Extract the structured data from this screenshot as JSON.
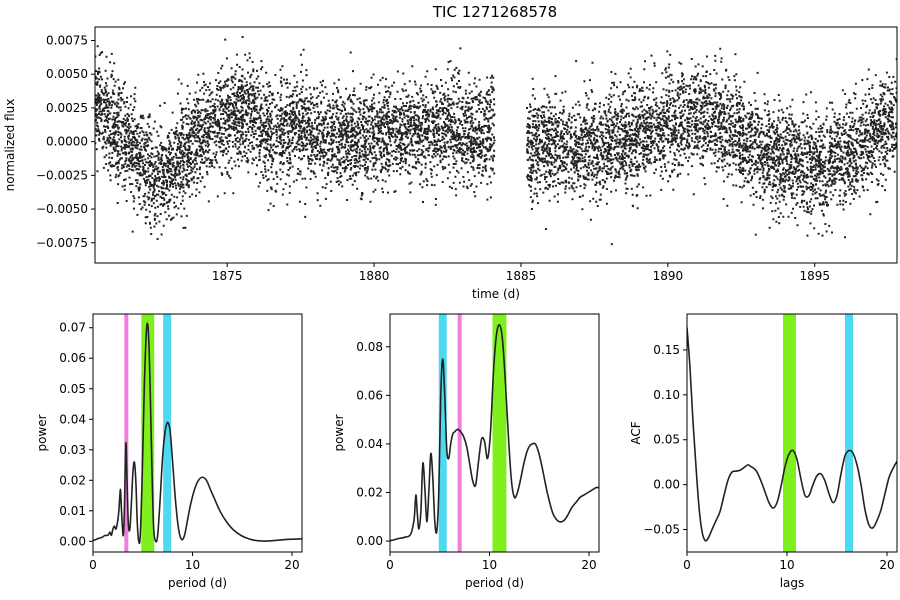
{
  "figure_title": "TIC 1271268578",
  "chart_data": [
    {
      "id": "lightcurve",
      "type": "scatter",
      "title": "TIC 1271268578",
      "xlabel": "time (d)",
      "ylabel": "normalized flux",
      "xlim": [
        1870.5,
        1897.8
      ],
      "ylim": [
        -0.009,
        0.0085
      ],
      "xticks": [
        1875,
        1880,
        1885,
        1890,
        1895
      ],
      "xtick_labels": [
        "1875",
        "1880",
        "1885",
        "1890",
        "1895"
      ],
      "yticks": [
        -0.0075,
        -0.005,
        -0.0025,
        0.0,
        0.0025,
        0.005,
        0.0075
      ],
      "ytick_labels": [
        "−0.0075",
        "−0.0050",
        "−0.0025",
        "0.0000",
        "0.0025",
        "0.0050",
        "0.0075"
      ],
      "segments": [
        [
          1870.5,
          1884.1
        ],
        [
          1885.2,
          1897.8
        ]
      ],
      "trend": {
        "t": [
          1870.5,
          1871.2,
          1872.0,
          1872.6,
          1873.2,
          1874.0,
          1875.0,
          1875.8,
          1876.5,
          1877.5,
          1878.5,
          1879.5,
          1880.5,
          1881.5,
          1882.5,
          1883.5,
          1884.1,
          1885.2,
          1886.0,
          1887.0,
          1888.0,
          1889.0,
          1890.0,
          1891.0,
          1891.6,
          1892.5,
          1893.5,
          1894.5,
          1895.5,
          1896.3,
          1897.0,
          1897.8
        ],
        "flux": [
          0.003,
          0.0008,
          -0.001,
          -0.0028,
          -0.002,
          0.0005,
          0.0018,
          0.0022,
          0.0002,
          0.0012,
          0.0003,
          0.0001,
          0.0006,
          0.0008,
          0.001,
          0.0006,
          0.0004,
          -0.0005,
          0.0,
          -0.0007,
          -0.0002,
          0.0005,
          0.001,
          0.0018,
          0.002,
          0.0002,
          -0.0012,
          -0.0015,
          -0.0018,
          -0.0008,
          0.0005,
          0.0015
        ]
      },
      "scatter_sigma": 0.0022,
      "n_points": 9000,
      "point_color": "#222222"
    },
    {
      "id": "periodogram1",
      "type": "line",
      "xlabel": "period (d)",
      "ylabel": "power",
      "xlim": [
        0,
        21
      ],
      "ylim": [
        -0.0035,
        0.0745
      ],
      "xticks": [
        0,
        10,
        20
      ],
      "xtick_labels": [
        "0",
        "10",
        "20"
      ],
      "yticks": [
        0.0,
        0.01,
        0.02,
        0.03,
        0.04,
        0.05,
        0.06,
        0.07
      ],
      "ytick_labels": [
        "0.00",
        "0.01",
        "0.02",
        "0.03",
        "0.04",
        "0.05",
        "0.06",
        "0.07"
      ],
      "bands": [
        {
          "x0": 3.15,
          "x1": 3.55,
          "color": "#f07fdc"
        },
        {
          "x0": 4.85,
          "x1": 6.15,
          "color": "#7ff01e"
        },
        {
          "x0": 7.05,
          "x1": 7.85,
          "color": "#4dd9f0"
        }
      ],
      "x": [
        0.05,
        0.3,
        0.6,
        0.9,
        1.2,
        1.5,
        1.7,
        1.85,
        2.0,
        2.15,
        2.3,
        2.45,
        2.6,
        2.75,
        2.85,
        2.95,
        3.05,
        3.15,
        3.3,
        3.4,
        3.55,
        3.7,
        3.85,
        4.0,
        4.15,
        4.3,
        4.45,
        4.6,
        4.75,
        4.95,
        5.15,
        5.35,
        5.5,
        5.65,
        5.8,
        5.95,
        6.1,
        6.3,
        6.5,
        6.75,
        7.0,
        7.25,
        7.5,
        7.75,
        8.0,
        8.3,
        8.6,
        8.9,
        9.2,
        9.5,
        9.8,
        10.2,
        10.6,
        11.0,
        11.4,
        11.8,
        12.2,
        12.6,
        13.0,
        13.4,
        13.8,
        14.2,
        14.6,
        15.0,
        15.5,
        16.0,
        16.5,
        17.0,
        17.5,
        18.0,
        19.0,
        20.0,
        21.0
      ],
      "y": [
        0.0003,
        0.0006,
        0.001,
        0.0013,
        0.0019,
        0.002,
        0.003,
        0.002,
        0.004,
        0.005,
        0.004,
        0.006,
        0.01,
        0.017,
        0.011,
        0.005,
        0.002,
        0.01,
        0.032,
        0.022,
        0.006,
        0.004,
        0.012,
        0.022,
        0.026,
        0.02,
        0.006,
        0.0,
        0.002,
        0.022,
        0.05,
        0.068,
        0.071,
        0.062,
        0.042,
        0.02,
        0.004,
        0.0,
        0.002,
        0.014,
        0.028,
        0.036,
        0.039,
        0.036,
        0.026,
        0.013,
        0.004,
        0.0006,
        0.002,
        0.007,
        0.012,
        0.017,
        0.02,
        0.021,
        0.02,
        0.017,
        0.014,
        0.011,
        0.0085,
        0.0065,
        0.0048,
        0.0035,
        0.0025,
        0.0017,
        0.001,
        0.0005,
        0.0002,
        0.0001,
        0.0001,
        0.0002,
        0.0005,
        0.0007,
        0.0008
      ]
    },
    {
      "id": "periodogram2",
      "type": "line",
      "xlabel": "period (d)",
      "ylabel": "power",
      "xlim": [
        0,
        21
      ],
      "ylim": [
        -0.0045,
        0.0935
      ],
      "xticks": [
        0,
        10,
        20
      ],
      "xtick_labels": [
        "0",
        "10",
        "20"
      ],
      "yticks": [
        0.0,
        0.02,
        0.04,
        0.06,
        0.08
      ],
      "ytick_labels": [
        "0.00",
        "0.02",
        "0.04",
        "0.06",
        "0.08"
      ],
      "bands": [
        {
          "x0": 4.9,
          "x1": 5.7,
          "color": "#4dd9f0"
        },
        {
          "x0": 6.8,
          "x1": 7.2,
          "color": "#f07fdc"
        },
        {
          "x0": 10.3,
          "x1": 11.7,
          "color": "#7ff01e"
        }
      ],
      "x": [
        0.05,
        0.4,
        0.8,
        1.2,
        1.6,
        1.9,
        2.1,
        2.3,
        2.45,
        2.6,
        2.75,
        2.9,
        3.1,
        3.3,
        3.5,
        3.7,
        3.9,
        4.1,
        4.3,
        4.5,
        4.7,
        4.9,
        5.1,
        5.3,
        5.5,
        5.7,
        5.9,
        6.1,
        6.3,
        6.5,
        6.8,
        7.1,
        7.4,
        7.7,
        8.0,
        8.3,
        8.6,
        8.9,
        9.2,
        9.5,
        9.8,
        10.1,
        10.4,
        10.7,
        11.0,
        11.3,
        11.6,
        11.9,
        12.2,
        12.5,
        12.8,
        13.1,
        13.4,
        13.7,
        14.0,
        14.3,
        14.6,
        14.9,
        15.2,
        15.5,
        15.8,
        16.1,
        16.4,
        16.7,
        17.0,
        17.3,
        17.6,
        17.9,
        18.3,
        18.7,
        19.1,
        19.5,
        19.9,
        20.3,
        20.7,
        21.0
      ],
      "y": [
        0.0002,
        0.0005,
        0.001,
        0.0013,
        0.0017,
        0.002,
        0.003,
        0.006,
        0.01,
        0.019,
        0.011,
        0.005,
        0.012,
        0.032,
        0.022,
        0.008,
        0.02,
        0.036,
        0.026,
        0.008,
        0.004,
        0.02,
        0.06,
        0.075,
        0.06,
        0.038,
        0.034,
        0.04,
        0.044,
        0.045,
        0.046,
        0.045,
        0.043,
        0.039,
        0.032,
        0.025,
        0.023,
        0.033,
        0.042,
        0.041,
        0.034,
        0.045,
        0.07,
        0.085,
        0.089,
        0.083,
        0.065,
        0.043,
        0.025,
        0.018,
        0.02,
        0.025,
        0.031,
        0.036,
        0.039,
        0.04,
        0.04,
        0.037,
        0.032,
        0.026,
        0.02,
        0.015,
        0.011,
        0.009,
        0.008,
        0.008,
        0.009,
        0.011,
        0.014,
        0.016,
        0.018,
        0.019,
        0.02,
        0.021,
        0.022,
        0.022
      ]
    },
    {
      "id": "acf",
      "type": "line",
      "xlabel": "lags",
      "ylabel": "ACF",
      "xlim": [
        0,
        21
      ],
      "ylim": [
        -0.075,
        0.19
      ],
      "xticks": [
        0,
        10,
        20
      ],
      "xtick_labels": [
        "0",
        "10",
        "20"
      ],
      "yticks": [
        -0.05,
        0.0,
        0.05,
        0.1,
        0.15
      ],
      "ytick_labels": [
        "−0.05",
        "0.00",
        "0.05",
        "0.10",
        "0.15"
      ],
      "bands": [
        {
          "x0": 9.6,
          "x1": 10.9,
          "color": "#7ff01e"
        },
        {
          "x0": 15.8,
          "x1": 16.6,
          "color": "#4dd9f0"
        }
      ],
      "x": [
        0.0,
        0.3,
        0.6,
        0.9,
        1.2,
        1.5,
        1.8,
        2.1,
        2.5,
        2.9,
        3.3,
        3.7,
        4.1,
        4.5,
        4.9,
        5.3,
        5.7,
        6.1,
        6.4,
        6.7,
        7.0,
        7.4,
        7.8,
        8.2,
        8.6,
        9.0,
        9.4,
        9.8,
        10.2,
        10.6,
        11.0,
        11.4,
        11.8,
        12.2,
        12.6,
        13.0,
        13.4,
        13.8,
        14.2,
        14.6,
        15.0,
        15.4,
        15.8,
        16.2,
        16.6,
        17.0,
        17.4,
        17.8,
        18.2,
        18.6,
        19.0,
        19.4,
        19.8,
        20.2,
        20.6,
        21.0
      ],
      "y": [
        0.175,
        0.13,
        0.07,
        0.02,
        -0.025,
        -0.052,
        -0.062,
        -0.06,
        -0.05,
        -0.04,
        -0.03,
        -0.012,
        0.005,
        0.014,
        0.015,
        0.016,
        0.019,
        0.022,
        0.02,
        0.018,
        0.014,
        0.004,
        -0.008,
        -0.02,
        -0.026,
        -0.02,
        -0.002,
        0.02,
        0.034,
        0.038,
        0.028,
        0.006,
        -0.012,
        -0.012,
        0.0,
        0.01,
        0.012,
        0.004,
        -0.01,
        -0.02,
        -0.012,
        0.012,
        0.032,
        0.038,
        0.035,
        0.022,
        0.0,
        -0.028,
        -0.045,
        -0.048,
        -0.04,
        -0.028,
        -0.01,
        0.008,
        0.018,
        0.026
      ]
    }
  ]
}
